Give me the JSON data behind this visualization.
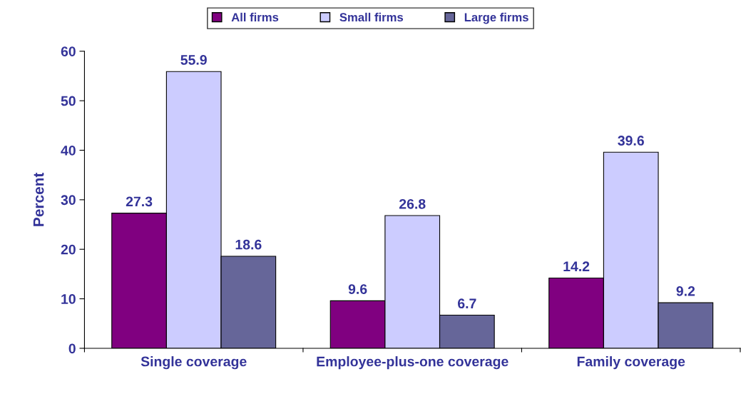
{
  "chart_data": {
    "type": "bar",
    "categories": [
      "Single coverage",
      "Employee-plus-one coverage",
      "Family coverage"
    ],
    "series": [
      {
        "name": "All firms",
        "color": "#800080",
        "values": [
          27.3,
          9.6,
          14.2
        ]
      },
      {
        "name": "Small firms",
        "color": "#ccccff",
        "values": [
          55.9,
          26.8,
          39.6
        ]
      },
      {
        "name": "Large firms",
        "color": "#666699",
        "values": [
          18.6,
          6.7,
          9.2
        ]
      }
    ],
    "ylabel": "Percent",
    "ylim": [
      0,
      60
    ],
    "yticks": [
      0,
      10,
      20,
      30,
      40,
      50,
      60
    ],
    "data_labels": true,
    "grid": false,
    "legend": "top"
  }
}
